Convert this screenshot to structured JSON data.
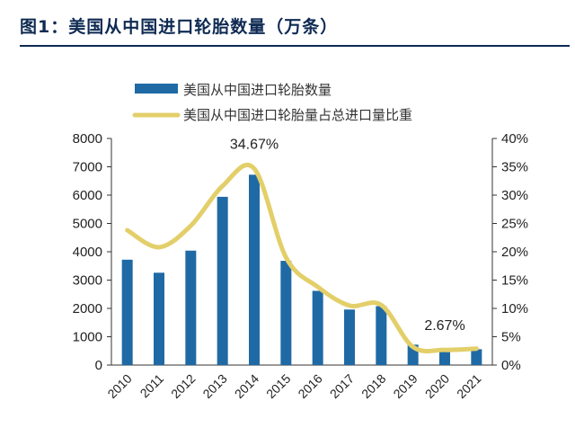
{
  "header": {
    "title": "图1：美国从中国进口轮胎数量（万条）"
  },
  "chart_data": {
    "type": "bar+line",
    "title": "图1：美国从中国进口轮胎数量（万条）",
    "categories": [
      "2010",
      "2011",
      "2012",
      "2013",
      "2014",
      "2015",
      "2016",
      "2017",
      "2018",
      "2019",
      "2020",
      "2021"
    ],
    "series": [
      {
        "name": "美国从中国进口轮胎数量",
        "type": "bar",
        "axis": "left",
        "color": "#1f6aa5",
        "values": [
          3720,
          3260,
          4040,
          5940,
          6720,
          3680,
          2620,
          1960,
          2080,
          720,
          480,
          560
        ]
      },
      {
        "name": "美国从中国进口轮胎量占总进口量比重",
        "type": "line",
        "axis": "right",
        "color": "#e3cf6a",
        "values": [
          23.8,
          20.8,
          24.6,
          31.6,
          34.67,
          19.0,
          13.8,
          10.5,
          10.6,
          3.2,
          2.67,
          2.9
        ]
      }
    ],
    "y_left": {
      "min": 0,
      "max": 8000,
      "ticks": [
        "0",
        "1000",
        "2000",
        "3000",
        "4000",
        "5000",
        "6000",
        "7000",
        "8000"
      ]
    },
    "y_right": {
      "min": 0,
      "max": 40,
      "ticks": [
        "0%",
        "5%",
        "10%",
        "15%",
        "20%",
        "25%",
        "30%",
        "35%",
        "40%"
      ]
    },
    "annotations": [
      {
        "text": "34.67%",
        "series": 1,
        "index": 4
      },
      {
        "text": "2.67%",
        "series": 1,
        "index": 10
      }
    ],
    "legend_position": "top-center"
  }
}
